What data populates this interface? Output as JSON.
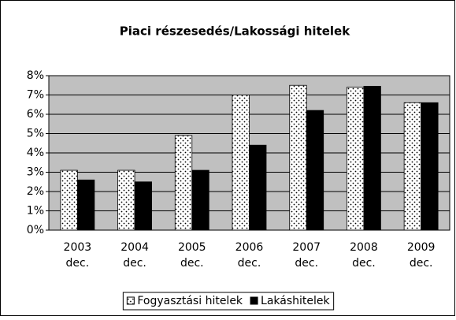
{
  "chart_data": {
    "type": "bar",
    "title": "Piaci részesedés/Lakossági hitelek",
    "categories": [
      [
        "2003",
        "dec."
      ],
      [
        "2004",
        "dec."
      ],
      [
        "2005",
        "dec."
      ],
      [
        "2006",
        "dec."
      ],
      [
        "2007",
        "dec."
      ],
      [
        "2008",
        "dec."
      ],
      [
        "2009",
        "dec."
      ]
    ],
    "series": [
      {
        "name": "Fogyasztási hitelek",
        "color": "#ffffff",
        "pattern": "dots",
        "values": [
          3.1,
          3.1,
          4.9,
          7.0,
          7.5,
          7.4,
          6.6
        ]
      },
      {
        "name": "Lakáshitelek",
        "color": "#000000",
        "values": [
          2.6,
          2.5,
          3.1,
          4.4,
          6.2,
          7.45,
          6.6
        ]
      }
    ],
    "ylim": [
      0,
      8
    ],
    "yticks": [
      {
        "value": 0,
        "label": "0%"
      },
      {
        "value": 1,
        "label": "1%"
      },
      {
        "value": 2,
        "label": "2%"
      },
      {
        "value": 3,
        "label": "3%"
      },
      {
        "value": 4,
        "label": "4%"
      },
      {
        "value": 5,
        "label": "5%"
      },
      {
        "value": 6,
        "label": "6%"
      },
      {
        "value": 7,
        "label": "7%"
      },
      {
        "value": 8,
        "label": "8%"
      }
    ],
    "grid": true,
    "plot_background": "#c0c0c0",
    "legend": "bottom"
  }
}
